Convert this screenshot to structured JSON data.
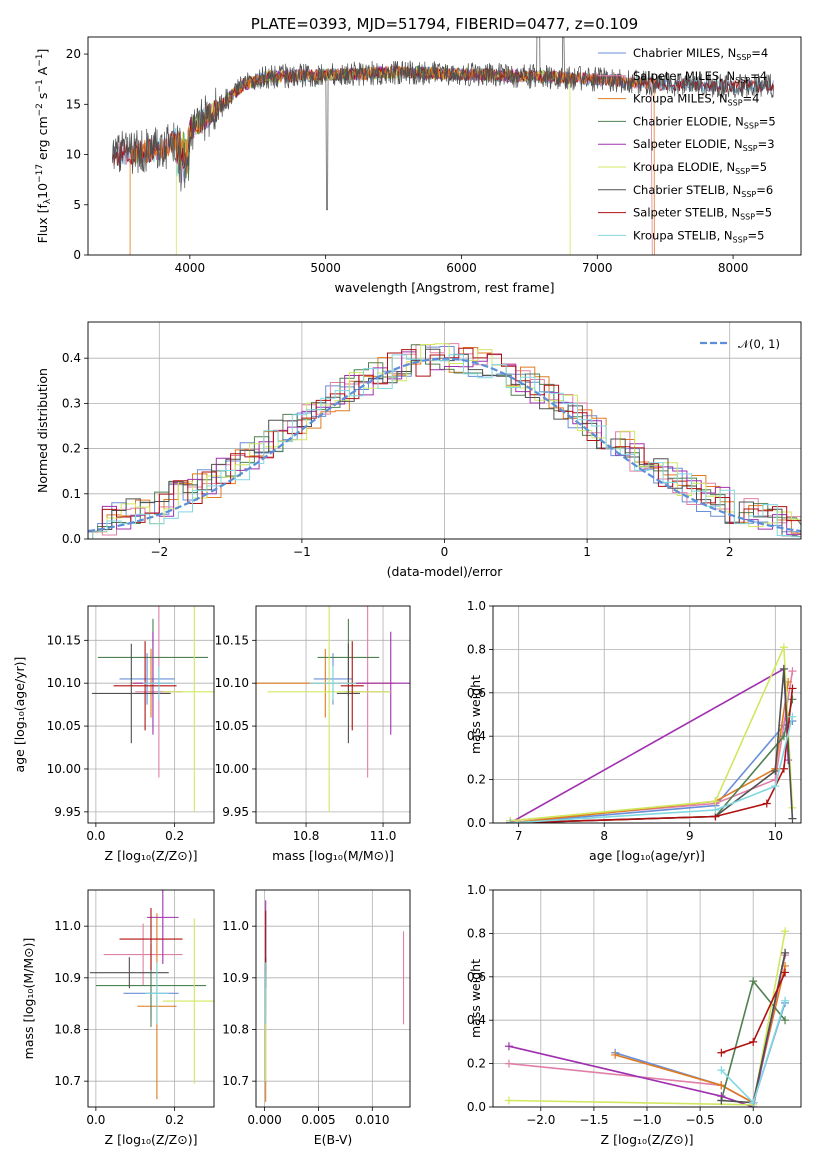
{
  "colors": {
    "Chabrier MILES": "#6a8fd8",
    "Salpeter MILES": "#e080a8",
    "Kroupa MILES": "#e07b20",
    "Chabrier ELODIE": "#508050",
    "Salpeter ELODIE": "#a030b0",
    "Kroupa ELODIE": "#d0e860",
    "Chabrier STELIB": "#505050",
    "Salpeter STELIB": "#b01010",
    "Kroupa STELIB": "#80d8e0",
    "normal": "#5b8fd8"
  },
  "chart_data": [
    {
      "id": "spectrum",
      "type": "line",
      "title": "PLATE=0393, MJD=51794, FIBERID=0477, z=0.109",
      "xlabel": "wavelength [Angstrom, rest frame]",
      "ylabel": "Flux [fλ10⁻¹⁷ erg cm⁻² s⁻¹ A⁻¹]",
      "xlim": [
        3250,
        8500
      ],
      "ylim": [
        0,
        21.7
      ],
      "xticks": [
        4000,
        5000,
        6000,
        7000,
        8000
      ],
      "yticks": [
        0,
        5,
        10,
        15,
        20
      ],
      "legend_position": "upper-right",
      "series": [
        {
          "name": "Chabrier MILES, NSSP=4",
          "key": "Chabrier MILES",
          "x_range": [
            3430,
            8300
          ]
        },
        {
          "name": "Salpeter MILES, NSSP=4",
          "key": "Salpeter MILES",
          "x_range": [
            3430,
            7400
          ]
        },
        {
          "name": "Kroupa MILES, NSSP=4",
          "key": "Kroupa MILES",
          "x_range": [
            3560,
            7420
          ]
        },
        {
          "name": "Chabrier ELODIE, NSSP=5",
          "key": "Chabrier ELODIE",
          "x_range": [
            3900,
            6800
          ]
        },
        {
          "name": "Salpeter ELODIE, NSSP=3",
          "key": "Salpeter ELODIE",
          "x_range": [
            3900,
            6800
          ]
        },
        {
          "name": "Kroupa ELODIE, NSSP=5",
          "key": "Kroupa ELODIE",
          "x_range": [
            3900,
            6800
          ]
        },
        {
          "name": "Chabrier STELIB, NSSP=6",
          "key": "Chabrier STELIB",
          "x_range": [
            3430,
            8300
          ],
          "is_data_like": true
        },
        {
          "name": "Salpeter STELIB, NSSP=5",
          "key": "Salpeter STELIB",
          "x_range": [
            3430,
            8300
          ]
        },
        {
          "name": "Kroupa STELIB, NSSP=5",
          "key": "Kroupa STELIB",
          "x_range": [
            3430,
            8300
          ]
        }
      ],
      "continuum": {
        "x": [
          3430,
          3600,
          3800,
          4000,
          4200,
          4400,
          4600,
          5000,
          5500,
          6000,
          6500,
          7000,
          7500,
          8000,
          8300
        ],
        "y": [
          10.0,
          10.2,
          10.5,
          12.5,
          14.5,
          17.0,
          17.8,
          17.9,
          18.2,
          18.0,
          17.8,
          17.5,
          17.0,
          16.8,
          16.8
        ]
      }
    },
    {
      "id": "residuals",
      "type": "line",
      "xlabel": "(data-model)/error",
      "ylabel": "Normed distribution",
      "xlim": [
        -2.5,
        2.5
      ],
      "ylim": [
        0,
        0.48
      ],
      "xticks": [
        -2,
        -1,
        0,
        1,
        2
      ],
      "yticks": [
        0.0,
        0.1,
        0.2,
        0.3,
        0.4
      ],
      "grid": true,
      "legend_position": "upper-right",
      "reference_curve": {
        "name": "𝒩(0, 1)",
        "mean": 0,
        "sigma": 1,
        "style": "dashed"
      },
      "bin_width": 0.1
    },
    {
      "id": "age-vs-Z",
      "type": "scatter",
      "xlabel": "Z [log₁₀(Z/Z⊙)]",
      "ylabel": "age [log₁₀(age/yr)]",
      "xlim": [
        -0.02,
        0.3
      ],
      "ylim": [
        9.937,
        10.19
      ],
      "xticks": [
        0.0,
        0.2
      ],
      "yticks": [
        9.95,
        10.0,
        10.05,
        10.1,
        10.15
      ],
      "grid": true,
      "points": [
        {
          "key": "Chabrier MILES",
          "x": 0.13,
          "xerr": 0.07,
          "y": 10.105,
          "yerr": 0.03
        },
        {
          "key": "Salpeter MILES",
          "x": 0.16,
          "xerr": 0.06,
          "y": 10.09,
          "yerr": 0.1
        },
        {
          "key": "Kroupa MILES",
          "x": 0.14,
          "xerr": 0.05,
          "y": 10.1,
          "yerr": 0.04
        },
        {
          "key": "Chabrier ELODIE",
          "x": 0.145,
          "xerr": 0.14,
          "y": 10.13,
          "yerr": 0.045
        },
        {
          "key": "Salpeter ELODIE",
          "x": 0.145,
          "xerr": 0.05,
          "y": 10.1,
          "yerr": 0.06
        },
        {
          "key": "Kroupa ELODIE",
          "x": 0.25,
          "xerr": 0.08,
          "y": 10.09,
          "yerr": 0.14
        },
        {
          "key": "Chabrier STELIB",
          "x": 0.09,
          "xerr": 0.1,
          "y": 10.088,
          "yerr": 0.058
        },
        {
          "key": "Salpeter STELIB",
          "x": 0.125,
          "xerr": 0.08,
          "y": 10.097,
          "yerr": 0.052
        },
        {
          "key": "Kroupa STELIB",
          "x": 0.16,
          "xerr": 0.04,
          "y": 10.1,
          "yerr": 0.02
        }
      ]
    },
    {
      "id": "age-vs-mass",
      "type": "scatter",
      "xlabel": "mass [log₁₀(M/M⊙)]",
      "ylabel": "",
      "xlim": [
        10.67,
        11.07
      ],
      "ylim": [
        9.937,
        10.19
      ],
      "xticks": [
        10.8,
        11.0
      ],
      "yticks": [
        9.95,
        10.0,
        10.05,
        10.1,
        10.15
      ],
      "grid": true,
      "points": [
        {
          "key": "Chabrier MILES",
          "x": 10.87,
          "xerr": 0.05,
          "y": 10.105,
          "yerr": 0.03
        },
        {
          "key": "Salpeter MILES",
          "x": 10.96,
          "xerr": 0.06,
          "y": 10.09,
          "yerr": 0.1
        },
        {
          "key": "Kroupa MILES",
          "x": 10.85,
          "xerr": 0.18,
          "y": 10.1,
          "yerr": 0.04
        },
        {
          "key": "Chabrier ELODIE",
          "x": 10.91,
          "xerr": 0.08,
          "y": 10.13,
          "yerr": 0.045
        },
        {
          "key": "Salpeter ELODIE",
          "x": 11.02,
          "xerr": 0.09,
          "y": 10.1,
          "yerr": 0.06
        },
        {
          "key": "Kroupa ELODIE",
          "x": 10.86,
          "xerr": 0.16,
          "y": 10.09,
          "yerr": 0.14
        },
        {
          "key": "Chabrier STELIB",
          "x": 10.91,
          "xerr": 0.03,
          "y": 10.088,
          "yerr": 0.058
        },
        {
          "key": "Salpeter STELIB",
          "x": 10.92,
          "xerr": 0.03,
          "y": 10.097,
          "yerr": 0.052
        },
        {
          "key": "Kroupa STELIB",
          "x": 10.87,
          "xerr": 0.06,
          "y": 10.1,
          "yerr": 0.02
        }
      ]
    },
    {
      "id": "mass-weight-vs-age",
      "type": "line",
      "xlabel": "age [log₁₀(age/yr)]",
      "ylabel": "mass weight",
      "xlim": [
        6.7,
        10.3
      ],
      "ylim": [
        0.0,
        1.0
      ],
      "xticks": [
        7,
        8,
        9,
        10
      ],
      "yticks": [
        0.0,
        0.2,
        0.4,
        0.6,
        0.8,
        1.0
      ],
      "grid": true,
      "series": [
        {
          "key": "Chabrier MILES",
          "x": [
            6.9,
            9.3,
            10.1,
            10.2
          ],
          "y": [
            0.0,
            0.08,
            0.45,
            0.47
          ]
        },
        {
          "key": "Salpeter MILES",
          "x": [
            6.9,
            9.3,
            10.0,
            10.2
          ],
          "y": [
            0.01,
            0.09,
            0.2,
            0.7
          ]
        },
        {
          "key": "Kroupa MILES",
          "x": [
            6.9,
            9.3,
            10.0,
            10.15
          ],
          "y": [
            0.0,
            0.1,
            0.25,
            0.65
          ]
        },
        {
          "key": "Chabrier ELODIE",
          "x": [
            6.9,
            9.3,
            10.1,
            10.2
          ],
          "y": [
            0.0,
            0.03,
            0.4,
            0.57
          ]
        },
        {
          "key": "Salpeter ELODIE",
          "x": [
            6.9,
            10.1,
            10.15
          ],
          "y": [
            0.0,
            0.71,
            0.29
          ]
        },
        {
          "key": "Kroupa ELODIE",
          "x": [
            6.9,
            9.3,
            10.1,
            10.2
          ],
          "y": [
            0.01,
            0.1,
            0.81,
            0.07
          ]
        },
        {
          "key": "Chabrier STELIB",
          "x": [
            6.9,
            9.3,
            10.0,
            10.1,
            10.2
          ],
          "y": [
            0.0,
            0.03,
            0.24,
            0.71,
            0.02
          ]
        },
        {
          "key": "Salpeter STELIB",
          "x": [
            6.9,
            9.3,
            9.9,
            10.1,
            10.2
          ],
          "y": [
            0.0,
            0.03,
            0.09,
            0.25,
            0.62
          ]
        },
        {
          "key": "Kroupa STELIB",
          "x": [
            6.9,
            9.3,
            10.0,
            10.2
          ],
          "y": [
            0.0,
            0.06,
            0.17,
            0.49
          ]
        }
      ]
    },
    {
      "id": "mass-vs-Z",
      "type": "scatter",
      "xlabel": "Z [log₁₀(Z/Z⊙)]",
      "ylabel": "mass [log₁₀(M/M⊙)]",
      "xlim": [
        -0.02,
        0.3
      ],
      "ylim": [
        10.65,
        11.07
      ],
      "xticks": [
        0.0,
        0.2
      ],
      "yticks": [
        10.7,
        10.8,
        10.9,
        11.0
      ],
      "grid": true,
      "points": [
        {
          "key": "Chabrier MILES",
          "x": 0.14,
          "xerr": 0.07,
          "y": 10.87,
          "yerr": 0.05
        },
        {
          "key": "Salpeter MILES",
          "x": 0.12,
          "xerr": 0.1,
          "y": 10.945,
          "yerr": 0.06
        },
        {
          "key": "Kroupa MILES",
          "x": 0.155,
          "xerr": 0.05,
          "y": 10.845,
          "yerr": 0.18
        },
        {
          "key": "Chabrier ELODIE",
          "x": 0.14,
          "xerr": 0.14,
          "y": 10.885,
          "yerr": 0.08
        },
        {
          "key": "Salpeter ELODIE",
          "x": 0.17,
          "xerr": 0.04,
          "y": 11.017,
          "yerr": 0.09
        },
        {
          "key": "Kroupa ELODIE",
          "x": 0.25,
          "xerr": 0.08,
          "y": 10.855,
          "yerr": 0.16
        },
        {
          "key": "Chabrier STELIB",
          "x": 0.085,
          "xerr": 0.1,
          "y": 10.91,
          "yerr": 0.03
        },
        {
          "key": "Salpeter STELIB",
          "x": 0.14,
          "xerr": 0.08,
          "y": 10.975,
          "yerr": 0.06
        },
        {
          "key": "Kroupa STELIB",
          "x": 0.155,
          "xerr": 0.03,
          "y": 10.87,
          "yerr": 0.06
        }
      ]
    },
    {
      "id": "mass-vs-ebv",
      "type": "scatter",
      "xlabel": "E(B-V)",
      "ylabel": "",
      "xlim": [
        -0.0008,
        0.0135
      ],
      "ylim": [
        10.65,
        11.07
      ],
      "xticks": [
        0.0,
        0.005,
        0.01
      ],
      "yticks": [
        10.7,
        10.8,
        10.9,
        11.0
      ],
      "grid": true,
      "points": [
        {
          "key": "Chabrier MILES",
          "x": 0.0001,
          "xerr": 0,
          "y": 10.87,
          "yerr": 0.05
        },
        {
          "key": "Salpeter MILES",
          "x": 0.0129,
          "xerr": 0,
          "y": 10.9,
          "yerr": 0.09
        },
        {
          "key": "Kroupa MILES",
          "x": 0.0001,
          "xerr": 0,
          "y": 10.76,
          "yerr": 0.1
        },
        {
          "key": "Chabrier ELODIE",
          "x": 0.0001,
          "xerr": 0,
          "y": 10.885,
          "yerr": 0.05
        },
        {
          "key": "Salpeter ELODIE",
          "x": 0.0001,
          "xerr": 0,
          "y": 10.99,
          "yerr": 0.06
        },
        {
          "key": "Kroupa ELODIE",
          "x": 0.0001,
          "xerr": 0,
          "y": 10.8,
          "yerr": 0.1
        },
        {
          "key": "Chabrier STELIB",
          "x": 0.0001,
          "xerr": 0,
          "y": 10.91,
          "yerr": 0.03
        },
        {
          "key": "Salpeter STELIB",
          "x": 0.0001,
          "xerr": 0,
          "y": 10.97,
          "yerr": 0.06
        },
        {
          "key": "Kroupa STELIB",
          "x": 0.0001,
          "xerr": 0,
          "y": 10.87,
          "yerr": 0.06
        }
      ]
    },
    {
      "id": "mass-weight-vs-Z",
      "type": "line",
      "xlabel": "Z [log₁₀(Z/Z⊙)]",
      "ylabel": "mass weight",
      "xlim": [
        -2.45,
        0.45
      ],
      "ylim": [
        0.0,
        1.0
      ],
      "xticks": [
        -2.0,
        -1.5,
        -1.0,
        -0.5,
        0.0
      ],
      "yticks": [
        0.0,
        0.2,
        0.4,
        0.6,
        0.8,
        1.0
      ],
      "grid": true,
      "series": [
        {
          "key": "Chabrier MILES",
          "x": [
            -1.3,
            -0.3,
            0.0,
            0.3
          ],
          "y": [
            0.25,
            0.1,
            0.02,
            0.48
          ]
        },
        {
          "key": "Salpeter MILES",
          "x": [
            -2.3,
            -0.3,
            0.0,
            0.3
          ],
          "y": [
            0.2,
            0.1,
            0.02,
            0.7
          ]
        },
        {
          "key": "Kroupa MILES",
          "x": [
            -1.3,
            -0.3,
            0.0,
            0.3
          ],
          "y": [
            0.24,
            0.1,
            0.02,
            0.65
          ]
        },
        {
          "key": "Chabrier ELODIE",
          "x": [
            -0.3,
            0.0,
            0.3
          ],
          "y": [
            0.03,
            0.58,
            0.4
          ]
        },
        {
          "key": "Salpeter ELODIE",
          "x": [
            -2.3,
            -0.3,
            0.0,
            0.3
          ],
          "y": [
            0.28,
            0.05,
            0.0,
            0.71
          ]
        },
        {
          "key": "Kroupa ELODIE",
          "x": [
            -2.3,
            0.0,
            0.3
          ],
          "y": [
            0.03,
            0.01,
            0.81
          ]
        },
        {
          "key": "Chabrier STELIB",
          "x": [
            -0.3,
            0.0,
            0.3
          ],
          "y": [
            0.03,
            0.02,
            0.71
          ]
        },
        {
          "key": "Salpeter STELIB",
          "x": [
            -0.3,
            0.0,
            0.3
          ],
          "y": [
            0.25,
            0.3,
            0.62
          ]
        },
        {
          "key": "Kroupa STELIB",
          "x": [
            -0.3,
            0.0,
            0.3
          ],
          "y": [
            0.17,
            0.02,
            0.49
          ]
        }
      ]
    }
  ]
}
